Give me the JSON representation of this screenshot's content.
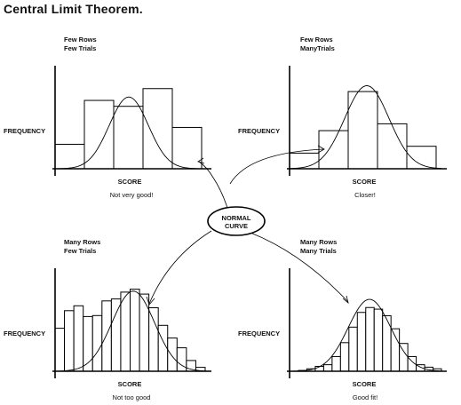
{
  "title": "Central Limit Theorem.",
  "center_node": {
    "line1": "NORMAL",
    "line2": "CURVE"
  },
  "panels": [
    {
      "id": "few-rows-few-trials",
      "cond1": "Few Rows",
      "cond2": "Few Trials",
      "ylabel": "FREQUENCY",
      "xlabel": "SCORE",
      "caption": "Not very good!"
    },
    {
      "id": "few-rows-many-trials",
      "cond1": "Few Rows",
      "cond2": "ManyTrials",
      "ylabel": "FREQUENCY",
      "xlabel": "SCORE",
      "caption": "Closer!"
    },
    {
      "id": "many-rows-few-trials",
      "cond1": "Many Rows",
      "cond2": "Few Trials",
      "ylabel": "FREQUENCY",
      "xlabel": "SCORE",
      "caption": "Not too good"
    },
    {
      "id": "many-rows-many-trials",
      "cond1": "Many Rows",
      "cond2": "Many Trials",
      "ylabel": "FREQUENCY",
      "xlabel": "SCORE",
      "caption": "Good fit!"
    }
  ],
  "chart_data": [
    {
      "type": "bar",
      "values": [
        0.29,
        0.81,
        0.74,
        0.95,
        0.49
      ]
    },
    {
      "type": "bar",
      "values": [
        0.16,
        0.39,
        0.79,
        0.46,
        0.23
      ]
    },
    {
      "type": "bar",
      "values": [
        0.44,
        0.62,
        0.67,
        0.56,
        0.57,
        0.72,
        0.74,
        0.81,
        0.84,
        0.79,
        0.65,
        0.47,
        0.34,
        0.24,
        0.11,
        0.04
      ]
    },
    {
      "type": "bar",
      "values": [
        0.01,
        0.03,
        0.06,
        0.08,
        0.18,
        0.35,
        0.54,
        0.72,
        0.78,
        0.76,
        0.68,
        0.52,
        0.34,
        0.18,
        0.08,
        0.05,
        0.03
      ]
    }
  ]
}
